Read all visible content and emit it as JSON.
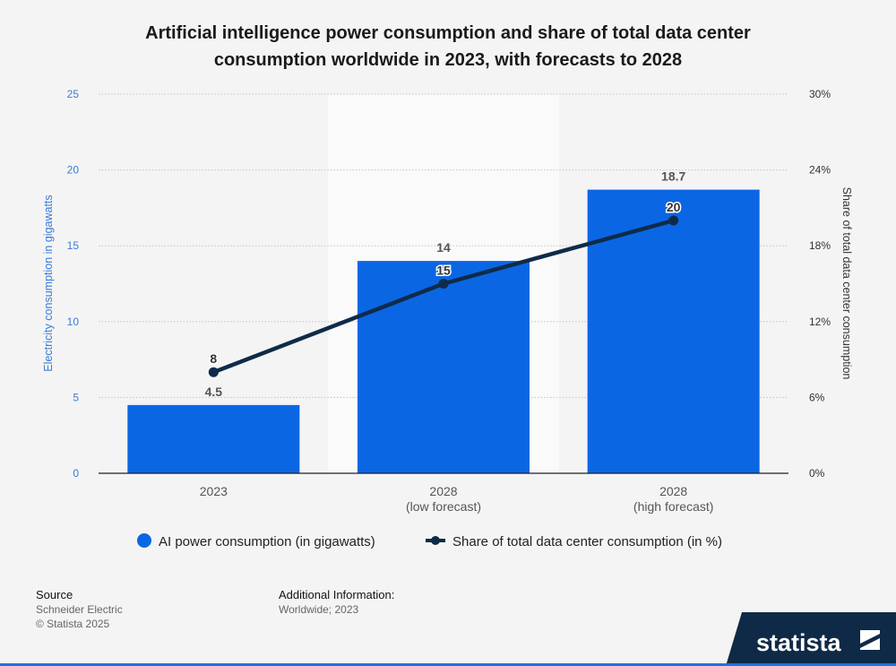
{
  "chart_data": {
    "type": "bar",
    "title": "Artificial intelligence power consumption and share of total data center consumption worldwide in 2023, with forecasts to 2028",
    "title_lines": [
      "Artificial intelligence power consumption and share of total data center",
      "consumption worldwide in 2023, with forecasts to 2028"
    ],
    "categories": [
      "2023",
      "2028 (low forecast)",
      "2028 (high forecast)"
    ],
    "category_lines": [
      [
        "2023"
      ],
      [
        "2028",
        "(low forecast)"
      ],
      [
        "2028",
        "(high forecast)"
      ]
    ],
    "series": [
      {
        "name": "AI power consumption (in gigawatts)",
        "type": "bar",
        "axis": "left",
        "values": [
          4.5,
          14,
          18.7
        ],
        "labels": [
          "4.5",
          "14",
          "18.7"
        ],
        "color": "#0b66e4"
      },
      {
        "name": "Share of total data center consumption (in %)",
        "type": "line",
        "axis": "right",
        "values": [
          8,
          15,
          20
        ],
        "labels": [
          "8",
          "15",
          "20"
        ],
        "color": "#0f2b48"
      }
    ],
    "ylabel": "Electricity consumption in gigawatts",
    "ylabel_right": "Share of total data center consumption",
    "ylim": [
      0,
      25
    ],
    "ylim_right": [
      0,
      30
    ],
    "yticks": [
      "0",
      "5",
      "10",
      "15",
      "20",
      "25"
    ],
    "yticks_right": [
      "0%",
      "6%",
      "12%",
      "18%",
      "24%",
      "30%"
    ],
    "grid": true,
    "highlighted_category": "2028 (low forecast)",
    "legend_placement": "bottom"
  },
  "footer": {
    "source_heading": "Source",
    "source_lines": [
      "Schneider Electric",
      "© Statista 2025"
    ],
    "info_heading": "Additional Information:",
    "info_lines": [
      "Worldwide; 2023"
    ]
  },
  "branding": {
    "logo_text": "statista",
    "logo_icon": "statista-logo-icon"
  },
  "colors": {
    "background": "#f4f4f4",
    "left_axis_text": "#3a7ad8",
    "logo_bg": "#0e2a47",
    "accent": "#1a73e8"
  }
}
